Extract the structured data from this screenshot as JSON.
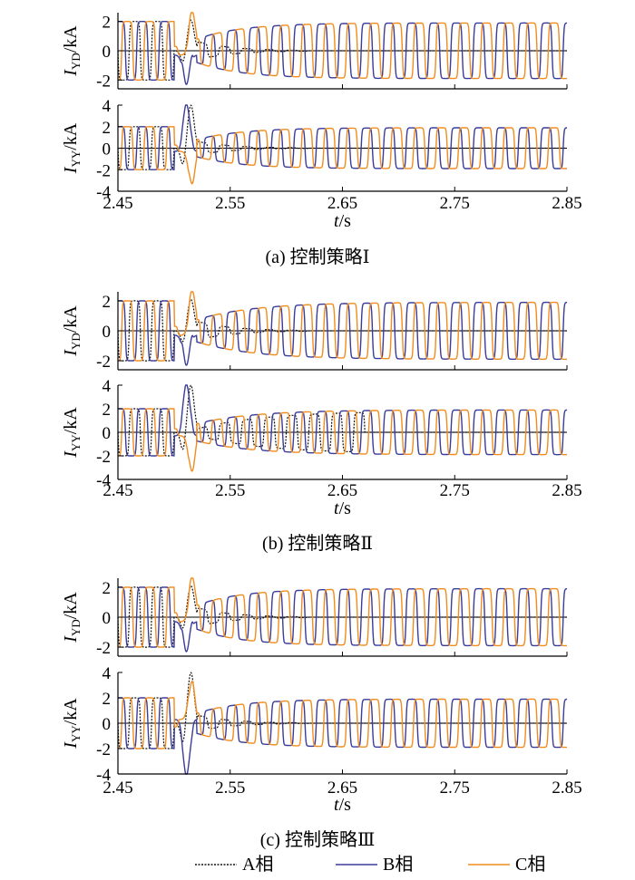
{
  "colors": {
    "A": "#111111",
    "B": "#3b3b98",
    "C": "#f28c1e",
    "axis": "#000000"
  },
  "legend": [
    {
      "key": "A",
      "label": "A相",
      "dash": true
    },
    {
      "key": "B",
      "label": "B相",
      "dash": false
    },
    {
      "key": "C",
      "label": "C相",
      "dash": false
    }
  ],
  "chart_data": [
    {
      "type": "line",
      "caption": "(a)  控制策略Ⅰ",
      "xlabel_italic": "t",
      "xlabel_unit": "/s",
      "xlim": [
        2.45,
        2.85
      ],
      "xticks": [
        "2.45",
        "2.55",
        "2.65",
        "2.75",
        "2.85"
      ],
      "subplots": [
        {
          "ylabel": "I",
          "ysub": "YD",
          "yunit": "/kA",
          "ylim": [
            -2.6,
            2.6
          ],
          "yticks": [
            "2",
            "0",
            "-2"
          ],
          "ytick_values": [
            2,
            0,
            -2
          ],
          "series": [
            {
              "name": "A相",
              "amplitude_before": 2.0,
              "after": 0.0
            },
            {
              "name": "B相",
              "amplitude_before": 2.0,
              "amplitude_after": 1.9,
              "peak": -2.6
            },
            {
              "name": "C相",
              "amplitude_before": 2.0,
              "amplitude_after": 1.9,
              "peak": 2.4
            }
          ]
        },
        {
          "ylabel": "I",
          "ysub": "YY",
          "yunit": "/kA",
          "ylim": [
            -4,
            4
          ],
          "yticks": [
            "4",
            "2",
            "0",
            "-2",
            "-4"
          ],
          "ytick_values": [
            4,
            2,
            0,
            -2,
            -4
          ],
          "series": [
            {
              "name": "A相",
              "amplitude_before": 2.0,
              "after": 0.0,
              "peak": 4.0
            },
            {
              "name": "B相",
              "amplitude_before": 2.0,
              "amplitude_after": 1.9,
              "peak": 3.8
            },
            {
              "name": "C相",
              "amplitude_before": 2.0,
              "amplitude_after": 1.9,
              "peak": -3.6
            }
          ]
        }
      ]
    },
    {
      "type": "line",
      "caption": "(b)  控制策略Ⅱ",
      "xlabel_italic": "t",
      "xlabel_unit": "/s",
      "xlim": [
        2.45,
        2.85
      ],
      "xticks": [
        "2.45",
        "2.55",
        "2.65",
        "2.75",
        "2.85"
      ],
      "subplots": [
        {
          "ylabel": "I",
          "ysub": "YD",
          "yunit": "/kA",
          "ylim": [
            -2.6,
            2.6
          ],
          "yticks": [
            "2",
            "0",
            "-2"
          ],
          "ytick_values": [
            2,
            0,
            -2
          ],
          "series": [
            {
              "name": "A相",
              "amplitude_before": 2.0,
              "after": 0.0
            },
            {
              "name": "B相",
              "amplitude_before": 2.0,
              "amplitude_after": 1.9
            },
            {
              "name": "C相",
              "amplitude_before": 2.0,
              "amplitude_after": 1.9
            }
          ]
        },
        {
          "ylabel": "I",
          "ysub": "YY",
          "yunit": "/kA",
          "ylim": [
            -4,
            4
          ],
          "yticks": [
            "4",
            "2",
            "0",
            "-2",
            "-4"
          ],
          "ytick_values": [
            4,
            2,
            0,
            -2,
            -4
          ],
          "series": [
            {
              "name": "A相",
              "amplitude_before": 2.0,
              "after": 0.0,
              "peak": 4.0
            },
            {
              "name": "B相",
              "amplitude_before": 2.0,
              "amplitude_after": 1.9
            },
            {
              "name": "C相",
              "amplitude_before": 2.0,
              "amplitude_after": 1.9
            }
          ]
        }
      ]
    },
    {
      "type": "line",
      "caption": "(c)  控制策略Ⅲ",
      "xlabel_italic": "t",
      "xlabel_unit": "/s",
      "xlim": [
        2.45,
        2.85
      ],
      "xticks": [
        "2.45",
        "2.55",
        "2.65",
        "2.75",
        "2.85"
      ],
      "subplots": [
        {
          "ylabel": "I",
          "ysub": "YD",
          "yunit": "/kA",
          "ylim": [
            -2.6,
            2.6
          ],
          "yticks": [
            "2",
            "0",
            "-2"
          ],
          "ytick_values": [
            2,
            0,
            -2
          ],
          "series": [
            {
              "name": "A相",
              "amplitude_before": 2.0,
              "after": 0.0
            },
            {
              "name": "B相",
              "amplitude_before": 2.0,
              "amplitude_after": 1.9
            },
            {
              "name": "C相",
              "amplitude_before": 2.0,
              "amplitude_after": 1.9
            }
          ]
        },
        {
          "ylabel": "I",
          "ysub": "YY",
          "yunit": "/kA",
          "ylim": [
            -4,
            4
          ],
          "yticks": [
            "4",
            "2",
            "0",
            "-2",
            "-4"
          ],
          "ytick_values": [
            4,
            2,
            0,
            -2,
            -4
          ],
          "series": [
            {
              "name": "A相",
              "amplitude_before": 2.0,
              "after": 0.0,
              "peak": 4.0
            },
            {
              "name": "B相",
              "amplitude_before": 2.0,
              "amplitude_after": 1.9
            },
            {
              "name": "C相",
              "amplitude_before": 2.0,
              "amplitude_after": 1.9
            }
          ]
        }
      ]
    }
  ]
}
